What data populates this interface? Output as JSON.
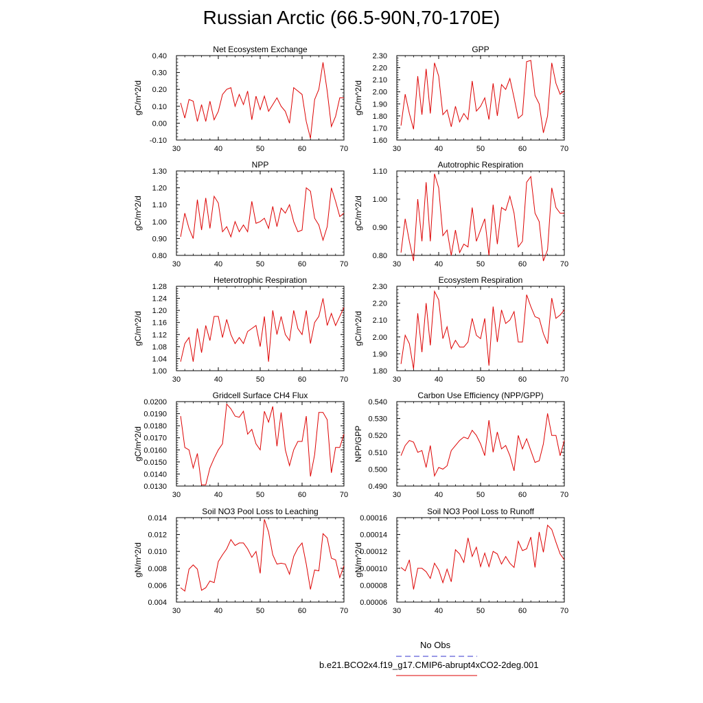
{
  "page": {
    "title": "Russian Arctic (66.5-90N,70-170E)"
  },
  "legend": {
    "obs_label": "No Obs",
    "obs_color": "#3333cc",
    "case_label": "b.e21.BCO2x4.f19_g17.CMIP6-abrupt4xCO2-2deg.001",
    "case_color": "#dd0000"
  },
  "chart_data": [
    {
      "type": "line",
      "title": "Net Ecosystem Exchange",
      "ylabel": "gC/m^2/d",
      "xlim": [
        30,
        70
      ],
      "ylim": [
        -0.1,
        0.4
      ],
      "x_ticks": [
        "30",
        "40",
        "50",
        "60",
        "70"
      ],
      "y_ticks": [
        "-0.10",
        "0.00",
        "0.10",
        "0.20",
        "0.30",
        "0.40"
      ],
      "x": [
        31,
        32,
        33,
        34,
        35,
        36,
        37,
        38,
        39,
        40,
        41,
        42,
        43,
        44,
        45,
        46,
        47,
        48,
        49,
        50,
        51,
        52,
        53,
        54,
        55,
        56,
        57,
        58,
        59,
        60,
        61,
        62,
        63,
        64,
        65,
        66,
        67,
        68,
        69,
        70
      ],
      "values": [
        0.12,
        0.03,
        0.14,
        0.13,
        0.01,
        0.11,
        0.01,
        0.13,
        0.02,
        0.07,
        0.17,
        0.2,
        0.21,
        0.1,
        0.17,
        0.11,
        0.19,
        0.02,
        0.16,
        0.08,
        0.16,
        0.07,
        0.11,
        0.15,
        0.1,
        0.07,
        0.0,
        0.21,
        0.19,
        0.17,
        0.01,
        -0.09,
        0.14,
        0.2,
        0.36,
        0.19,
        -0.02,
        0.04,
        0.15,
        0.15
      ]
    },
    {
      "type": "line",
      "title": "GPP",
      "ylabel": "gC/m^2/d",
      "xlim": [
        30,
        70
      ],
      "ylim": [
        1.6,
        2.3
      ],
      "x_ticks": [
        "30",
        "40",
        "50",
        "60",
        "70"
      ],
      "y_ticks": [
        "1.60",
        "1.70",
        "1.80",
        "1.90",
        "2.00",
        "2.10",
        "2.20",
        "2.30"
      ],
      "x": [
        31,
        32,
        33,
        34,
        35,
        36,
        37,
        38,
        39,
        40,
        41,
        42,
        43,
        44,
        45,
        46,
        47,
        48,
        49,
        50,
        51,
        52,
        53,
        54,
        55,
        56,
        57,
        58,
        59,
        60,
        61,
        62,
        63,
        64,
        65,
        66,
        67,
        68,
        69,
        70
      ],
      "values": [
        1.72,
        1.98,
        1.82,
        1.69,
        2.13,
        1.81,
        2.19,
        1.82,
        2.24,
        2.13,
        1.81,
        1.85,
        1.71,
        1.88,
        1.75,
        1.82,
        1.77,
        2.09,
        1.84,
        1.88,
        1.95,
        1.77,
        2.07,
        1.8,
        2.06,
        2.02,
        2.11,
        1.95,
        1.78,
        1.81,
        2.25,
        2.26,
        1.97,
        1.9,
        1.66,
        1.8,
        2.24,
        2.07,
        1.98,
        2.01
      ]
    },
    {
      "type": "line",
      "title": "NPP",
      "ylabel": "gC/m^2/d",
      "xlim": [
        30,
        70
      ],
      "ylim": [
        0.8,
        1.3
      ],
      "x_ticks": [
        "30",
        "40",
        "50",
        "60",
        "70"
      ],
      "y_ticks": [
        "0.80",
        "0.90",
        "1.00",
        "1.10",
        "1.20",
        "1.30"
      ],
      "x": [
        31,
        32,
        33,
        34,
        35,
        36,
        37,
        38,
        39,
        40,
        41,
        42,
        43,
        44,
        45,
        46,
        47,
        48,
        49,
        50,
        51,
        52,
        53,
        54,
        55,
        56,
        57,
        58,
        59,
        60,
        61,
        62,
        63,
        64,
        65,
        66,
        67,
        68,
        69,
        70
      ],
      "values": [
        0.91,
        1.05,
        0.96,
        0.9,
        1.13,
        0.95,
        1.14,
        0.96,
        1.15,
        1.11,
        0.94,
        0.97,
        0.91,
        1.0,
        0.94,
        0.98,
        0.94,
        1.12,
        0.99,
        1.0,
        1.02,
        0.96,
        1.09,
        0.97,
        1.08,
        1.05,
        1.1,
        1.0,
        0.94,
        0.95,
        1.2,
        1.18,
        1.02,
        0.98,
        0.89,
        0.97,
        1.2,
        1.12,
        1.03,
        1.05
      ]
    },
    {
      "type": "line",
      "title": "Autotrophic Respiration",
      "ylabel": "gC/m^2/d",
      "xlim": [
        30,
        70
      ],
      "ylim": [
        0.8,
        1.1
      ],
      "x_ticks": [
        "30",
        "40",
        "50",
        "60",
        "70"
      ],
      "y_ticks": [
        "0.80",
        "0.90",
        "1.00",
        "1.10"
      ],
      "x": [
        31,
        32,
        33,
        34,
        35,
        36,
        37,
        38,
        39,
        40,
        41,
        42,
        43,
        44,
        45,
        46,
        47,
        48,
        49,
        50,
        51,
        52,
        53,
        54,
        55,
        56,
        57,
        58,
        59,
        60,
        61,
        62,
        63,
        64,
        65,
        66,
        67,
        68,
        69,
        70
      ],
      "values": [
        0.81,
        0.93,
        0.85,
        0.78,
        1.0,
        0.85,
        1.06,
        0.85,
        1.09,
        1.04,
        0.87,
        0.89,
        0.8,
        0.89,
        0.81,
        0.84,
        0.83,
        0.97,
        0.85,
        0.89,
        0.93,
        0.8,
        0.98,
        0.84,
        0.97,
        0.96,
        1.01,
        0.95,
        0.83,
        0.85,
        1.06,
        1.08,
        0.95,
        0.92,
        0.78,
        0.82,
        1.04,
        0.97,
        0.95,
        0.95
      ]
    },
    {
      "type": "line",
      "title": "Heterotrophic Respiration",
      "ylabel": "gC/m^2/d",
      "xlim": [
        30,
        70
      ],
      "ylim": [
        1.0,
        1.28
      ],
      "x_ticks": [
        "30",
        "40",
        "50",
        "60",
        "70"
      ],
      "y_ticks": [
        "1.00",
        "1.04",
        "1.08",
        "1.12",
        "1.16",
        "1.20",
        "1.24",
        "1.28"
      ],
      "x": [
        31,
        32,
        33,
        34,
        35,
        36,
        37,
        38,
        39,
        40,
        41,
        42,
        43,
        44,
        45,
        46,
        47,
        48,
        49,
        50,
        51,
        52,
        53,
        54,
        55,
        56,
        57,
        58,
        59,
        60,
        61,
        62,
        63,
        64,
        65,
        66,
        67,
        68,
        69,
        70
      ],
      "values": [
        1.03,
        1.09,
        1.11,
        1.03,
        1.14,
        1.06,
        1.15,
        1.1,
        1.18,
        1.18,
        1.11,
        1.17,
        1.12,
        1.09,
        1.11,
        1.09,
        1.13,
        1.14,
        1.15,
        1.08,
        1.18,
        1.03,
        1.2,
        1.12,
        1.18,
        1.12,
        1.1,
        1.2,
        1.14,
        1.12,
        1.2,
        1.09,
        1.16,
        1.18,
        1.24,
        1.15,
        1.19,
        1.15,
        1.18,
        1.21
      ]
    },
    {
      "type": "line",
      "title": "Ecosystem Respiration",
      "ylabel": "gC/m^2/d",
      "xlim": [
        30,
        70
      ],
      "ylim": [
        1.8,
        2.3
      ],
      "x_ticks": [
        "30",
        "40",
        "50",
        "60",
        "70"
      ],
      "y_ticks": [
        "1.80",
        "1.90",
        "2.00",
        "2.10",
        "2.20",
        "2.30"
      ],
      "x": [
        31,
        32,
        33,
        34,
        35,
        36,
        37,
        38,
        39,
        40,
        41,
        42,
        43,
        44,
        45,
        46,
        47,
        48,
        49,
        50,
        51,
        52,
        53,
        54,
        55,
        56,
        57,
        58,
        59,
        60,
        61,
        62,
        63,
        64,
        65,
        66,
        67,
        68,
        69,
        70
      ],
      "values": [
        1.84,
        2.01,
        1.96,
        1.81,
        2.14,
        1.91,
        2.2,
        1.95,
        2.27,
        2.22,
        1.99,
        2.06,
        1.93,
        1.98,
        1.94,
        1.94,
        1.97,
        2.11,
        2.01,
        1.99,
        2.11,
        1.83,
        2.18,
        1.97,
        2.16,
        2.08,
        2.1,
        2.15,
        1.97,
        1.97,
        2.25,
        2.18,
        2.12,
        2.11,
        2.02,
        1.96,
        2.23,
        2.11,
        2.13,
        2.16
      ]
    },
    {
      "type": "line",
      "title": "Gridcell Surface CH4 Flux",
      "ylabel": "gC/m^2/d",
      "xlim": [
        30,
        70
      ],
      "ylim": [
        0.013,
        0.02
      ],
      "x_ticks": [
        "30",
        "40",
        "50",
        "60",
        "70"
      ],
      "y_ticks": [
        "0.0130",
        "0.0140",
        "0.0150",
        "0.0160",
        "0.0170",
        "0.0180",
        "0.0190",
        "0.0200"
      ],
      "x": [
        31,
        32,
        33,
        34,
        35,
        36,
        37,
        38,
        39,
        40,
        41,
        42,
        43,
        44,
        45,
        46,
        47,
        48,
        49,
        50,
        51,
        52,
        53,
        54,
        55,
        56,
        57,
        58,
        59,
        60,
        61,
        62,
        63,
        64,
        65,
        66,
        67,
        68,
        69,
        70
      ],
      "values": [
        0.0188,
        0.0162,
        0.016,
        0.0145,
        0.0157,
        0.0131,
        0.0131,
        0.0145,
        0.0153,
        0.016,
        0.0165,
        0.0198,
        0.0194,
        0.0188,
        0.0187,
        0.0192,
        0.0173,
        0.0177,
        0.0165,
        0.016,
        0.0192,
        0.0183,
        0.0196,
        0.0163,
        0.0191,
        0.016,
        0.0147,
        0.016,
        0.0167,
        0.0167,
        0.0188,
        0.0138,
        0.0156,
        0.0191,
        0.0191,
        0.0185,
        0.0141,
        0.0162,
        0.0162,
        0.0173
      ]
    },
    {
      "type": "line",
      "title": "Carbon Use Efficiency (NPP/GPP)",
      "ylabel": "NPP/GPP",
      "xlim": [
        30,
        70
      ],
      "ylim": [
        0.49,
        0.54
      ],
      "x_ticks": [
        "30",
        "40",
        "50",
        "60",
        "70"
      ],
      "y_ticks": [
        "0.490",
        "0.500",
        "0.510",
        "0.520",
        "0.530",
        "0.540"
      ],
      "x": [
        31,
        32,
        33,
        34,
        35,
        36,
        37,
        38,
        39,
        40,
        41,
        42,
        43,
        44,
        45,
        46,
        47,
        48,
        49,
        50,
        51,
        52,
        53,
        54,
        55,
        56,
        57,
        58,
        59,
        60,
        61,
        62,
        63,
        64,
        65,
        66,
        67,
        68,
        69,
        70
      ],
      "values": [
        0.508,
        0.514,
        0.517,
        0.516,
        0.51,
        0.511,
        0.501,
        0.514,
        0.496,
        0.501,
        0.5,
        0.502,
        0.511,
        0.514,
        0.517,
        0.519,
        0.518,
        0.523,
        0.52,
        0.515,
        0.508,
        0.529,
        0.51,
        0.522,
        0.512,
        0.514,
        0.508,
        0.499,
        0.52,
        0.512,
        0.518,
        0.511,
        0.504,
        0.505,
        0.515,
        0.533,
        0.52,
        0.52,
        0.508,
        0.517
      ]
    },
    {
      "type": "line",
      "title": "Soil NO3 Pool Loss to Leaching",
      "ylabel": "gN/m^2/d",
      "xlim": [
        30,
        70
      ],
      "ylim": [
        0.004,
        0.014
      ],
      "x_ticks": [
        "30",
        "40",
        "50",
        "60",
        "70"
      ],
      "y_ticks": [
        "0.004",
        "0.006",
        "0.008",
        "0.010",
        "0.012",
        "0.014"
      ],
      "x": [
        31,
        32,
        33,
        34,
        35,
        36,
        37,
        38,
        39,
        40,
        41,
        42,
        43,
        44,
        45,
        46,
        47,
        48,
        49,
        50,
        51,
        52,
        53,
        54,
        55,
        56,
        57,
        58,
        59,
        60,
        61,
        62,
        63,
        64,
        65,
        66,
        67,
        68,
        69,
        70
      ],
      "values": [
        0.0057,
        0.0053,
        0.0079,
        0.0084,
        0.0079,
        0.0054,
        0.0057,
        0.0065,
        0.0063,
        0.0088,
        0.0096,
        0.0103,
        0.0114,
        0.0107,
        0.011,
        0.011,
        0.0103,
        0.0093,
        0.01,
        0.0074,
        0.0138,
        0.0123,
        0.0096,
        0.0085,
        0.0086,
        0.0085,
        0.0073,
        0.0094,
        0.0104,
        0.011,
        0.0085,
        0.0055,
        0.0078,
        0.0077,
        0.0121,
        0.0116,
        0.0092,
        0.009,
        0.0069,
        0.0083
      ]
    },
    {
      "type": "line",
      "title": "Soil NO3 Pool Loss to Runoff",
      "ylabel": "gN/m^2/d",
      "xlim": [
        30,
        70
      ],
      "ylim": [
        6e-05,
        0.00016
      ],
      "x_ticks": [
        "30",
        "40",
        "50",
        "60",
        "70"
      ],
      "y_ticks": [
        "0.00006",
        "0.00008",
        "0.00010",
        "0.00012",
        "0.00014",
        "0.00016"
      ],
      "x": [
        31,
        32,
        33,
        34,
        35,
        36,
        37,
        38,
        39,
        40,
        41,
        42,
        43,
        44,
        45,
        46,
        47,
        48,
        49,
        50,
        51,
        52,
        53,
        54,
        55,
        56,
        57,
        58,
        59,
        60,
        61,
        62,
        63,
        64,
        65,
        66,
        67,
        68,
        69,
        70
      ],
      "values": [
        0.000101,
        9.7e-05,
        0.00011,
        7.5e-05,
        0.0001,
        0.0001,
        9.6e-05,
        8.8e-05,
        0.000106,
        9.8e-05,
        8.3e-05,
        9.9e-05,
        8.4e-05,
        0.000122,
        0.000117,
        0.000107,
        0.000136,
        0.000114,
        0.000125,
        0.000102,
        0.000118,
        0.000102,
        0.00012,
        0.000117,
        0.000105,
        0.000114,
        0.000106,
        0.000101,
        0.000132,
        0.000121,
        0.000123,
        0.000137,
        0.000101,
        0.000143,
        0.000119,
        0.000151,
        0.000146,
        0.000131,
        0.000117,
        0.00011
      ]
    }
  ]
}
